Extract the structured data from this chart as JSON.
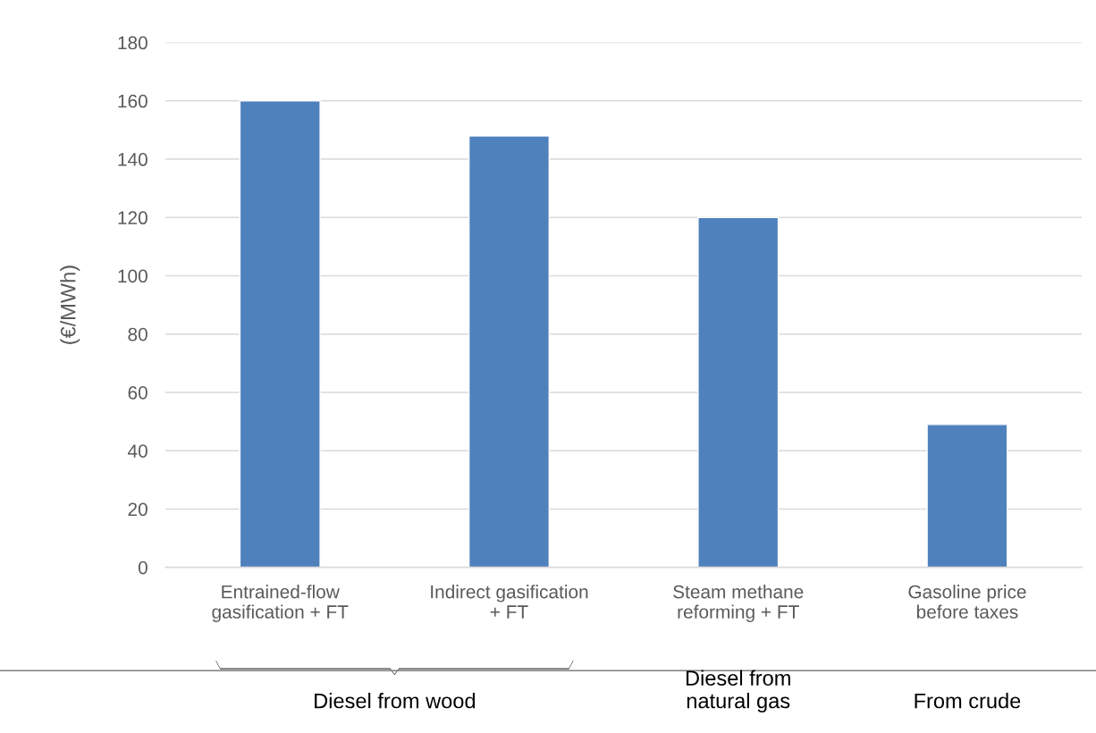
{
  "chart_data": {
    "type": "bar",
    "categories": [
      "Entrained-flow\ngasification + FT",
      "Indirect gasification\n+ FT",
      "Steam methane\nreforming + FT",
      "Gasoline price\nbefore taxes"
    ],
    "values": [
      160,
      148,
      120,
      49
    ],
    "color": "#4f81bd",
    "ylabel": "(€/MWh)",
    "ylim": [
      0,
      180
    ],
    "yticks": [
      0,
      20,
      40,
      60,
      80,
      100,
      120,
      140,
      160,
      180
    ],
    "grid": "y",
    "legend": false,
    "annotations": [
      "Diesel from wood",
      "Diesel from\nnatural gas",
      "From crude"
    ]
  }
}
